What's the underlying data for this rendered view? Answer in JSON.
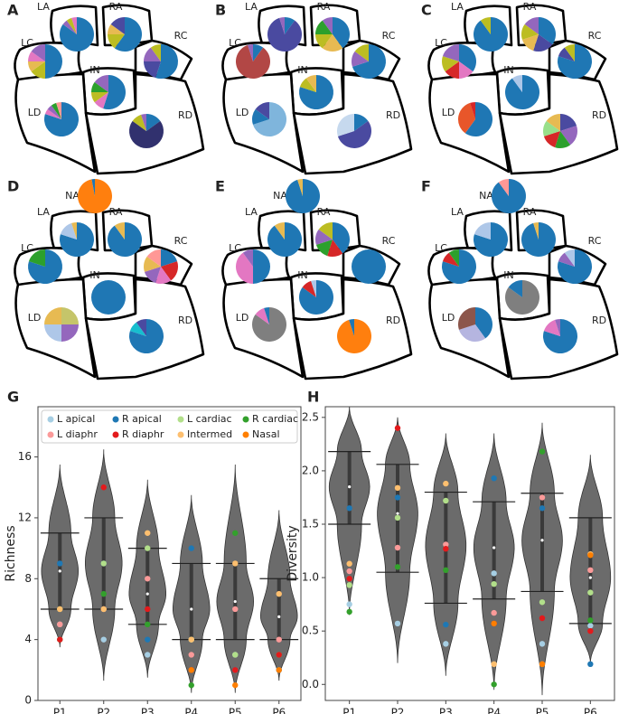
{
  "chart_data": [
    {
      "type": "pie",
      "panel": "A",
      "pies": [
        {
          "label": "LA",
          "values": [
            85,
            5,
            5,
            5
          ],
          "colors": [
            "#1f77b4",
            "#9467bd",
            "#bcbd22",
            "#e377c2"
          ]
        },
        {
          "label": "RA",
          "values": [
            60,
            15,
            10,
            15
          ],
          "colors": [
            "#1f77b4",
            "#bcbd22",
            "#e7ba52",
            "#4a4aa0"
          ]
        },
        {
          "label": "LC",
          "values": [
            50,
            15,
            10,
            10,
            15
          ],
          "colors": [
            "#1f77b4",
            "#bcbd22",
            "#e7ba52",
            "#e377c2",
            "#9467bd"
          ]
        },
        {
          "label": "RC",
          "values": [
            55,
            20,
            15,
            10
          ],
          "colors": [
            "#1f77b4",
            "#4a4aa0",
            "#9467bd",
            "#bcbd22"
          ]
        },
        {
          "label": "IN",
          "values": [
            55,
            10,
            10,
            10,
            15
          ],
          "colors": [
            "#1f77b4",
            "#e377c2",
            "#bcbd22",
            "#2ca02c",
            "#9467bd"
          ]
        },
        {
          "label": "LD",
          "values": [
            80,
            5,
            5,
            5,
            5
          ],
          "colors": [
            "#1f77b4",
            "#e377c2",
            "#9467bd",
            "#2ca02c",
            "#ff9896"
          ]
        },
        {
          "label": "RD",
          "values": [
            15,
            70,
            10,
            5
          ],
          "colors": [
            "#1f77b4",
            "#31316e",
            "#bcbd22",
            "#9467bd"
          ]
        }
      ]
    },
    {
      "type": "pie",
      "panel": "B",
      "pies": [
        {
          "label": "LA",
          "values": [
            10,
            85,
            5
          ],
          "colors": [
            "#1f77b4",
            "#4a4aa0",
            "#9467bd"
          ]
        },
        {
          "label": "RA",
          "values": [
            40,
            20,
            15,
            15,
            10
          ],
          "colors": [
            "#1f77b4",
            "#e7ba52",
            "#bcbd22",
            "#2ca02c",
            "#9467bd"
          ]
        },
        {
          "label": "LC",
          "values": [
            10,
            85,
            5
          ],
          "colors": [
            "#1f77b4",
            "#b24745",
            "#9467bd"
          ]
        },
        {
          "label": "RC",
          "values": [
            70,
            15,
            15
          ],
          "colors": [
            "#1f77b4",
            "#9467bd",
            "#bcbd22"
          ]
        },
        {
          "label": "IN",
          "values": [
            80,
            10,
            10
          ],
          "colors": [
            "#1f77b4",
            "#bcbd22",
            "#e7ba52"
          ]
        },
        {
          "label": "LD",
          "values": [
            70,
            15,
            15
          ],
          "colors": [
            "#7fb5dc",
            "#1f77b4",
            "#4a4aa0"
          ]
        },
        {
          "label": "RD",
          "values": [
            15,
            55,
            30
          ],
          "colors": [
            "#1f77b4",
            "#4a4aa0",
            "#c6d9ee"
          ]
        }
      ]
    },
    {
      "type": "pie",
      "panel": "C",
      "pies": [
        {
          "label": "LA",
          "values": [
            90,
            10
          ],
          "colors": [
            "#1f77b4",
            "#bcbd22"
          ]
        },
        {
          "label": "RA",
          "values": [
            35,
            20,
            15,
            15,
            15
          ],
          "colors": [
            "#1f77b4",
            "#4a4aa0",
            "#e7ba52",
            "#bcbd22",
            "#9467bd"
          ]
        },
        {
          "label": "LC",
          "values": [
            35,
            15,
            15,
            15,
            20
          ],
          "colors": [
            "#1f77b4",
            "#e377c2",
            "#d62728",
            "#bcbd22",
            "#9467bd"
          ]
        },
        {
          "label": "RC",
          "values": [
            80,
            10,
            10
          ],
          "colors": [
            "#1f77b4",
            "#4a4aa0",
            "#bcbd22"
          ]
        },
        {
          "label": "IN",
          "values": [
            90,
            10
          ],
          "colors": [
            "#1f77b4",
            "#aec7e8"
          ]
        },
        {
          "label": "LD",
          "values": [
            60,
            35,
            5
          ],
          "colors": [
            "#1f77b4",
            "#e8562a",
            "#d62728"
          ]
        },
        {
          "label": "RD",
          "values": [
            20,
            20,
            15,
            15,
            15,
            15
          ],
          "colors": [
            "#4a4aa0",
            "#9467bd",
            "#2ca02c",
            "#d62728",
            "#98df8a",
            "#e7ba52"
          ]
        }
      ]
    },
    {
      "type": "pie",
      "panel": "D",
      "pies": [
        {
          "label": "NA",
          "values": [
            97,
            3
          ],
          "colors": [
            "#ff7f0e",
            "#1f77b4"
          ]
        },
        {
          "label": "LA",
          "values": [
            80,
            15,
            5
          ],
          "colors": [
            "#1f77b4",
            "#aec7e8",
            "#e7ba52"
          ]
        },
        {
          "label": "RA",
          "values": [
            90,
            10
          ],
          "colors": [
            "#1f77b4",
            "#e7ba52"
          ]
        },
        {
          "label": "LC",
          "values": [
            80,
            20
          ],
          "colors": [
            "#1f77b4",
            "#2ca02c"
          ]
        },
        {
          "label": "RC",
          "values": [
            20,
            20,
            15,
            15,
            15,
            15
          ],
          "colors": [
            "#1f77b4",
            "#d62728",
            "#e377c2",
            "#9467bd",
            "#e7ba52",
            "#ff9896"
          ]
        },
        {
          "label": "IN",
          "values": [
            100
          ],
          "colors": [
            "#1f77b4"
          ]
        },
        {
          "label": "LD",
          "values": [
            25,
            25,
            25,
            25
          ],
          "colors": [
            "#c5c56a",
            "#9467bd",
            "#aec7e8",
            "#e7ba52"
          ]
        },
        {
          "label": "RD",
          "values": [
            80,
            10,
            10
          ],
          "colors": [
            "#1f77b4",
            "#17becf",
            "#4a4aa0"
          ]
        }
      ]
    },
    {
      "type": "pie",
      "panel": "E",
      "pies": [
        {
          "label": "NA",
          "values": [
            95,
            5
          ],
          "colors": [
            "#1f77b4",
            "#e7ba52"
          ]
        },
        {
          "label": "LA",
          "values": [
            90,
            10
          ],
          "colors": [
            "#1f77b4",
            "#e7ba52"
          ]
        },
        {
          "label": "RA",
          "values": [
            40,
            15,
            15,
            15,
            15
          ],
          "colors": [
            "#1f77b4",
            "#d62728",
            "#2ca02c",
            "#9467bd",
            "#bcbd22"
          ]
        },
        {
          "label": "LC",
          "values": [
            50,
            40,
            10
          ],
          "colors": [
            "#1f77b4",
            "#e377c2",
            "#9467bd"
          ]
        },
        {
          "label": "RC",
          "values": [
            100
          ],
          "colors": [
            "#1f77b4"
          ]
        },
        {
          "label": "IN",
          "values": [
            85,
            10,
            5
          ],
          "colors": [
            "#1f77b4",
            "#d62728",
            "#aec7e8"
          ]
        },
        {
          "label": "LD",
          "values": [
            85,
            10,
            5
          ],
          "colors": [
            "#7f7f7f",
            "#e377c2",
            "#1f77b4"
          ]
        },
        {
          "label": "RD",
          "values": [
            95,
            5
          ],
          "colors": [
            "#ff7f0e",
            "#1f77b4"
          ]
        }
      ]
    },
    {
      "type": "pie",
      "panel": "F",
      "pies": [
        {
          "label": "NA",
          "values": [
            90,
            10
          ],
          "colors": [
            "#1f77b4",
            "#ff9896"
          ]
        },
        {
          "label": "LA",
          "values": [
            80,
            20
          ],
          "colors": [
            "#1f77b4",
            "#aec7e8"
          ]
        },
        {
          "label": "RA",
          "values": [
            95,
            5
          ],
          "colors": [
            "#1f77b4",
            "#e7ba52"
          ]
        },
        {
          "label": "LC",
          "values": [
            80,
            10,
            10
          ],
          "colors": [
            "#1f77b4",
            "#d62728",
            "#2ca02c"
          ]
        },
        {
          "label": "RC",
          "values": [
            80,
            10,
            10
          ],
          "colors": [
            "#1f77b4",
            "#9467bd",
            "#aec7e8"
          ]
        },
        {
          "label": "IN",
          "values": [
            85,
            15
          ],
          "colors": [
            "#7f7f7f",
            "#1f77b4"
          ]
        },
        {
          "label": "LD",
          "values": [
            40,
            30,
            30
          ],
          "colors": [
            "#1f77b4",
            "#b5b5e0",
            "#8c564b"
          ]
        },
        {
          "label": "RD",
          "values": [
            80,
            15,
            5
          ],
          "colors": [
            "#1f77b4",
            "#e377c2",
            "#9467bd"
          ]
        }
      ]
    },
    {
      "type": "violin",
      "panel": "G",
      "ylabel": "Richness",
      "categories": [
        "P1",
        "P2",
        "P3",
        "P4",
        "P5",
        "P6"
      ],
      "ylim": [
        0,
        19.3
      ],
      "yticks": [
        0,
        4,
        8,
        12,
        16
      ],
      "violin_color": "#6b6b6b",
      "violins": [
        {
          "min": 3.5,
          "lower": 6,
          "median": 8.5,
          "upper": 11,
          "max": 15.5
        },
        {
          "min": 1.3,
          "lower": 6,
          "median": 9,
          "upper": 12,
          "max": 16.5
        },
        {
          "min": 1.5,
          "lower": 5,
          "median": 7,
          "upper": 10,
          "max": 14.5
        },
        {
          "min": 0.5,
          "lower": 4,
          "median": 6,
          "upper": 9,
          "max": 13.5
        },
        {
          "min": 0.5,
          "lower": 4,
          "median": 6.5,
          "upper": 9,
          "max": 15.5
        },
        {
          "min": 1.3,
          "lower": 4,
          "median": 5.5,
          "upper": 8,
          "max": 12.5
        }
      ],
      "series": [
        {
          "name": "L apical",
          "color": "#a6cee3",
          "values": [
            5,
            4,
            3,
            4,
            3,
            2
          ]
        },
        {
          "name": "R apical",
          "color": "#1f78b4",
          "values": [
            9,
            9,
            4,
            10,
            2,
            2
          ]
        },
        {
          "name": "L cardiac",
          "color": "#b2df8a",
          "values": [
            6,
            9,
            10,
            4,
            3,
            3
          ]
        },
        {
          "name": "R cardiac",
          "color": "#33a02c",
          "values": [
            4,
            7,
            5,
            1,
            11,
            3
          ]
        },
        {
          "name": "L diaphr",
          "color": "#fb9a99",
          "values": [
            5,
            6,
            8,
            3,
            6,
            4
          ]
        },
        {
          "name": "R diaphr",
          "color": "#e31a1c",
          "values": [
            4,
            14,
            6,
            2,
            2,
            3
          ]
        },
        {
          "name": "Intermed",
          "color": "#fdbf6f",
          "values": [
            6,
            6,
            11,
            4,
            9,
            7
          ]
        },
        {
          "name": "Nasal",
          "color": "#ff7f00",
          "values": [
            null,
            null,
            null,
            2,
            1,
            2
          ]
        }
      ]
    },
    {
      "type": "violin",
      "panel": "H",
      "ylabel": "Diversity",
      "categories": [
        "P1",
        "P2",
        "P3",
        "P4",
        "P5",
        "P6"
      ],
      "ylim": [
        -0.15,
        2.6
      ],
      "yticks": [
        {
          "value": 0,
          "label": "0.0"
        },
        0.5,
        {
          "value": 1,
          "label": "1.0"
        },
        1.5,
        {
          "value": 2,
          "label": "2.0"
        },
        2.5
      ],
      "violin_color": "#6b6b6b",
      "violins": [
        {
          "min": 0.65,
          "lower": 1.5,
          "median": 1.85,
          "upper": 2.18,
          "max": 2.6
        },
        {
          "min": 0.2,
          "lower": 1.05,
          "median": 1.6,
          "upper": 2.06,
          "max": 2.5
        },
        {
          "min": 0.08,
          "lower": 0.76,
          "median": 1.3,
          "upper": 1.8,
          "max": 2.35
        },
        {
          "min": -0.05,
          "lower": 0.8,
          "median": 1.28,
          "upper": 1.71,
          "max": 2.35
        },
        {
          "min": -0.1,
          "lower": 0.87,
          "median": 1.35,
          "upper": 1.79,
          "max": 2.45
        },
        {
          "min": 0.2,
          "lower": 0.57,
          "median": 1.0,
          "upper": 1.56,
          "max": 2.15
        }
      ],
      "series": [
        {
          "color": "#a6cee3",
          "values": [
            0.75,
            0.57,
            0.38,
            1.04,
            0.38,
            0.55
          ]
        },
        {
          "color": "#1f78b4",
          "values": [
            1.65,
            1.75,
            0.56,
            1.93,
            1.65,
            0.19
          ]
        },
        {
          "color": "#b2df8a",
          "values": [
            0.93,
            1.56,
            1.72,
            0.94,
            0.77,
            0.86
          ]
        },
        {
          "color": "#33a02c",
          "values": [
            0.68,
            1.1,
            1.07,
            0.0,
            2.18,
            0.6
          ]
        },
        {
          "color": "#fb9a99",
          "values": [
            1.06,
            1.28,
            1.31,
            0.67,
            1.75,
            1.07
          ]
        },
        {
          "color": "#e31a1c",
          "values": [
            0.99,
            2.4,
            1.27,
            0.57,
            0.62,
            0.5
          ]
        },
        {
          "color": "#fdbf6f",
          "values": [
            1.13,
            1.84,
            1.88,
            0.19,
            0.19,
            1.22
          ]
        },
        {
          "color": "#ff7f00",
          "values": [
            null,
            null,
            null,
            0.57,
            0.19,
            1.21
          ]
        }
      ]
    }
  ]
}
